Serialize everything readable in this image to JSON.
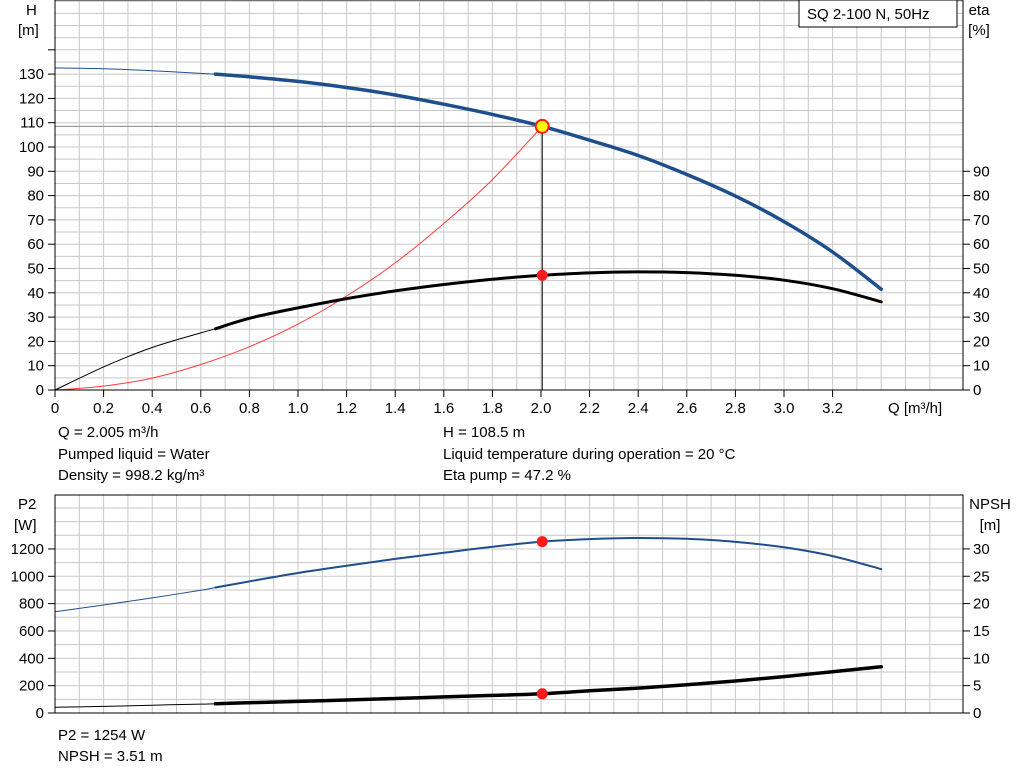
{
  "colors": {
    "head_curve": "#1f4e8c",
    "eta_curve": "#000000",
    "system_curve": "#ff3b3b",
    "p2_curve": "#1f4e8c",
    "npsh_curve": "#000000",
    "grid": "#c8c8c8",
    "duty_point_marker": "#ff1a1a",
    "head_marker_fill": "#ffff00"
  },
  "title_box": "SQ 2-100 N, 50Hz",
  "top_chart": {
    "left_axis_label": [
      "H",
      "[m]"
    ],
    "right_axis_label": [
      "eta",
      "[%]"
    ],
    "x_axis_label": "Q [m³/h]"
  },
  "bottom_chart": {
    "left_axis_label": [
      "P2",
      "[W]"
    ],
    "right_axis_label": [
      "NPSH",
      "[m]"
    ]
  },
  "info": {
    "flow": "Q = 2.005 m³/h",
    "pumped_liquid": "Pumped liquid = Water",
    "density": "Density = 998.2 kg/m³",
    "head": "H = 108.5 m",
    "liquid_temperature": "Liquid temperature during operation = 20 °C",
    "eta_pump": "Eta pump = 47.2 %",
    "p2": "P2 = 1254 W",
    "npsh": "NPSH = 3.51 m"
  },
  "chart_data": [
    {
      "type": "line",
      "xlabel": "Q [m³/h]",
      "ylabel": "H [m]",
      "y2label": "eta [%]",
      "xlim": [
        0,
        3.7
      ],
      "ylim": [
        0,
        140
      ],
      "y2lim": [
        0,
        140
      ],
      "x_ticks": [
        0,
        0.2,
        0.4,
        0.6,
        0.8,
        1.0,
        1.2,
        1.4,
        1.6,
        1.8,
        2.0,
        2.2,
        2.4,
        2.6,
        2.8,
        3.0,
        3.2
      ],
      "x_tick_labels": [
        "0",
        "0.2",
        "0.4",
        "0.6",
        "0.8",
        "1.0",
        "1.2",
        "1.4",
        "1.6",
        "1.8",
        "2.0",
        "2.2",
        "2.4",
        "2.6",
        "2.8",
        "3.0",
        "3.2"
      ],
      "y_ticks": [
        0,
        10,
        20,
        30,
        40,
        50,
        60,
        70,
        80,
        90,
        100,
        110,
        120,
        130
      ],
      "y2_ticks": [
        0,
        10,
        20,
        30,
        40,
        50,
        60,
        70,
        80,
        90
      ],
      "grid": true,
      "series": [
        {
          "axis": "left",
          "key": "head",
          "x": [
            0,
            0.2,
            0.4,
            0.6,
            0.66,
            0.8,
            1.0,
            1.2,
            1.4,
            1.6,
            1.8,
            2.005,
            2.2,
            2.4,
            2.6,
            2.8,
            3.0,
            3.2,
            3.4
          ],
          "y": [
            132.5,
            132.2,
            131.4,
            130.3,
            130.0,
            128.9,
            127.0,
            124.5,
            121.4,
            117.6,
            113.4,
            108.5,
            102.8,
            96.5,
            88.7,
            79.8,
            69.3,
            56.8,
            41.5
          ]
        },
        {
          "axis": "right",
          "key": "eta",
          "x": [
            0,
            0.2,
            0.4,
            0.6,
            0.66,
            0.8,
            1.0,
            1.2,
            1.4,
            1.6,
            1.8,
            2.005,
            2.2,
            2.4,
            2.6,
            2.8,
            3.0,
            3.2,
            3.4
          ],
          "y": [
            0,
            9.5,
            17.5,
            23.5,
            25.2,
            29.5,
            33.8,
            37.6,
            40.8,
            43.4,
            45.6,
            47.2,
            48.2,
            48.6,
            48.3,
            47.2,
            45.2,
            41.7,
            36.3
          ]
        },
        {
          "axis": "left",
          "key": "system",
          "x": [
            0,
            0.2,
            0.4,
            0.6,
            0.8,
            1.0,
            1.2,
            1.4,
            1.6,
            1.8,
            2.005
          ],
          "y": [
            0,
            1.6,
            4.9,
            10.5,
            17.8,
            27.1,
            38.7,
            52.3,
            68.5,
            86.6,
            108.5
          ]
        }
      ],
      "duty_point": {
        "q": 2.005,
        "head": 108.5,
        "eta": 47.2
      }
    },
    {
      "type": "line",
      "ylabel": "P2 [W]",
      "y2label": "NPSH [m]",
      "xlim": [
        0,
        3.7
      ],
      "ylim": [
        0,
        1400
      ],
      "y2lim": [
        0,
        35
      ],
      "y_ticks": [
        0,
        200,
        400,
        600,
        800,
        1000,
        1200
      ],
      "y2_ticks": [
        0,
        5,
        10,
        15,
        20,
        25,
        30
      ],
      "grid": true,
      "series": [
        {
          "axis": "left",
          "key": "p2",
          "x": [
            0,
            0.2,
            0.4,
            0.6,
            0.66,
            0.8,
            1.0,
            1.2,
            1.4,
            1.6,
            1.8,
            2.005,
            2.2,
            2.4,
            2.6,
            2.8,
            3.0,
            3.2,
            3.4
          ],
          "y": [
            740,
            790,
            842,
            898,
            918,
            963,
            1024,
            1077,
            1127,
            1172,
            1216,
            1254,
            1272,
            1280,
            1274,
            1252,
            1212,
            1148,
            1053
          ]
        },
        {
          "axis": "right",
          "key": "npsh",
          "x": [
            0,
            0.2,
            0.4,
            0.6,
            0.66,
            0.8,
            1.0,
            1.2,
            1.4,
            1.6,
            1.8,
            2.005,
            2.2,
            2.4,
            2.6,
            2.8,
            3.0,
            3.2,
            3.4
          ],
          "y": [
            1.05,
            1.2,
            1.42,
            1.62,
            1.68,
            1.88,
            2.12,
            2.38,
            2.65,
            2.95,
            3.22,
            3.51,
            4.05,
            4.55,
            5.15,
            5.85,
            6.65,
            7.55,
            8.45
          ]
        }
      ],
      "duty_point": {
        "q": 2.005,
        "p2": 1254,
        "npsh": 3.51
      }
    }
  ]
}
